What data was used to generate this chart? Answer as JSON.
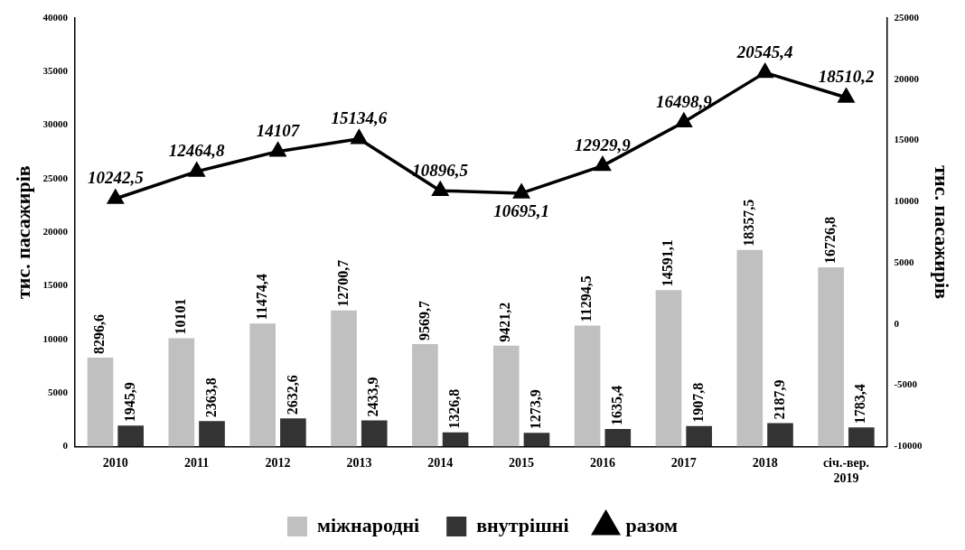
{
  "chart_data": {
    "type": "bar",
    "ylabel": "тис. пасажирів",
    "y2label": "тис. пасажирів",
    "categories": [
      "2010",
      "2011",
      "2012",
      "2013",
      "2014",
      "2015",
      "2016",
      "2017",
      "2018",
      "січ.-вер. 2019"
    ],
    "series": [
      {
        "name": "міжнародні",
        "color": "#c0c0c0",
        "values": [
          8296.6,
          10101,
          11474.4,
          12700.7,
          9569.7,
          9421.2,
          11294.5,
          14591.1,
          18357.5,
          16726.8
        ],
        "value_labels": [
          "8296,6",
          "10101",
          "11474,4",
          "12700,7",
          "9569,7",
          "9421,2",
          "11294,5",
          "14591,1",
          "18357,5",
          "16726,8"
        ]
      },
      {
        "name": "внутрішні",
        "color": "#333333",
        "values": [
          1945.9,
          2363.8,
          2632.6,
          2433.9,
          1326.8,
          1273.9,
          1635.4,
          1907.8,
          2187.9,
          1783.4
        ],
        "value_labels": [
          "1945,9",
          "2363,8",
          "2632,6",
          "2433,9",
          "1326,8",
          "1273,9",
          "1635,4",
          "1907,8",
          "2187,9",
          "1783,4"
        ]
      },
      {
        "name": "разом",
        "type": "line",
        "axis": "y2",
        "color": "#000000",
        "marker": "triangle",
        "values": [
          10242.5,
          12464.8,
          14107,
          15134.6,
          10896.5,
          10695.1,
          12929.9,
          16498.9,
          20545.4,
          18510.2
        ],
        "value_labels": [
          "10242,5",
          "12464,8",
          "14107",
          "15134,6",
          "10896,5",
          "10695,1",
          "12929,9",
          "16498,9",
          "20545,4",
          "18510,2"
        ]
      }
    ],
    "ylim": [
      0,
      40000
    ],
    "yticks": [
      0,
      5000,
      10000,
      15000,
      20000,
      25000,
      30000,
      35000,
      40000
    ],
    "y2lim": [
      -10000,
      25000
    ],
    "y2ticks": [
      -10000,
      -5000,
      0,
      5000,
      10000,
      15000,
      20000,
      25000
    ],
    "grid": false,
    "legend": "bottom"
  }
}
